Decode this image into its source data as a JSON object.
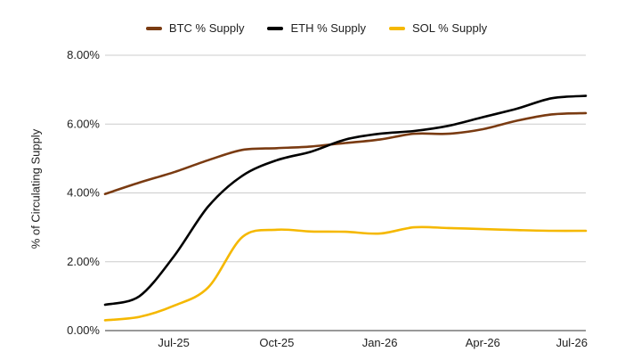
{
  "chart_data": {
    "type": "line",
    "ylabel": "% of Circulating Supply",
    "xlabel": "",
    "ylim": [
      0,
      8
    ],
    "y_ticks": [
      "0.00%",
      "2.00%",
      "4.00%",
      "6.00%",
      "8.00%"
    ],
    "x_ticks": [
      "Jul-25",
      "Oct-25",
      "Jan-26",
      "Apr-26",
      "Jul-26"
    ],
    "grid": "horizontal",
    "legend_position": "top",
    "x": [
      "2025-05",
      "2025-06",
      "2025-07",
      "2025-08",
      "2025-09",
      "2025-10",
      "2025-11",
      "2025-12",
      "2026-01",
      "2026-02",
      "2026-03",
      "2026-04",
      "2026-05",
      "2026-06",
      "2026-07"
    ],
    "series": [
      {
        "name": "BTC % Supply",
        "color": "#7a3b12",
        "values": [
          3.97,
          4.3,
          4.6,
          4.95,
          5.25,
          5.3,
          5.35,
          5.45,
          5.55,
          5.72,
          5.72,
          5.85,
          6.1,
          6.28,
          6.32
        ]
      },
      {
        "name": "ETH % Supply",
        "color": "#000000",
        "values": [
          0.75,
          1.0,
          2.15,
          3.6,
          4.5,
          4.95,
          5.2,
          5.55,
          5.72,
          5.8,
          5.95,
          6.2,
          6.45,
          6.75,
          6.82
        ]
      },
      {
        "name": "SOL % Supply",
        "color": "#f5b800",
        "values": [
          0.3,
          0.4,
          0.72,
          1.25,
          2.72,
          2.93,
          2.88,
          2.87,
          2.82,
          3.0,
          2.98,
          2.95,
          2.92,
          2.9,
          2.9
        ]
      }
    ]
  }
}
